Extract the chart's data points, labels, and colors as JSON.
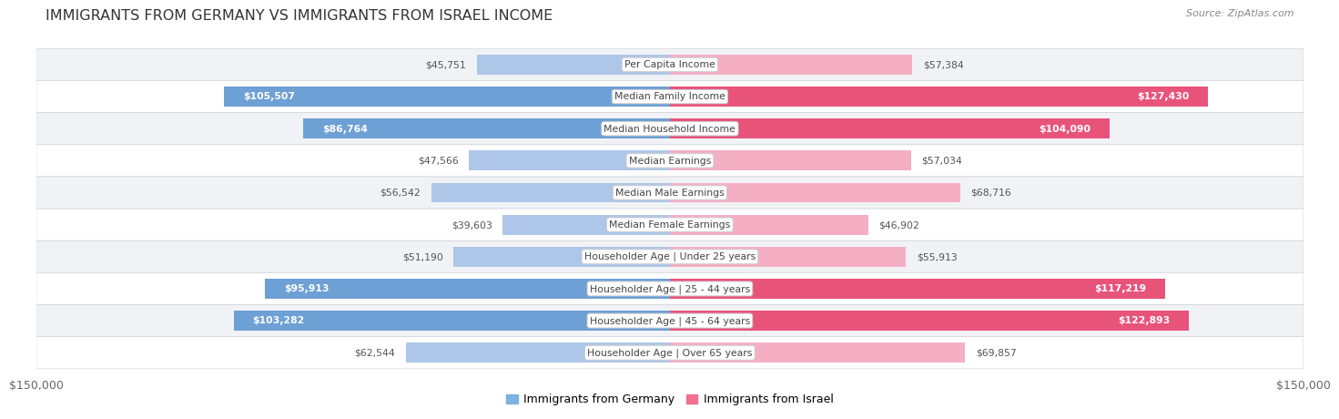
{
  "title": "IMMIGRANTS FROM GERMANY VS IMMIGRANTS FROM ISRAEL INCOME",
  "source": "Source: ZipAtlas.com",
  "categories": [
    "Per Capita Income",
    "Median Family Income",
    "Median Household Income",
    "Median Earnings",
    "Median Male Earnings",
    "Median Female Earnings",
    "Householder Age | Under 25 years",
    "Householder Age | 25 - 44 years",
    "Householder Age | 45 - 64 years",
    "Householder Age | Over 65 years"
  ],
  "germany_values": [
    45751,
    105507,
    86764,
    47566,
    56542,
    39603,
    51190,
    95913,
    103282,
    62544
  ],
  "israel_values": [
    57384,
    127430,
    104090,
    57034,
    68716,
    46902,
    55913,
    117219,
    122893,
    69857
  ],
  "germany_labels": [
    "$45,751",
    "$105,507",
    "$86,764",
    "$47,566",
    "$56,542",
    "$39,603",
    "$51,190",
    "$95,913",
    "$103,282",
    "$62,544"
  ],
  "israel_labels": [
    "$57,384",
    "$127,430",
    "$104,090",
    "$57,034",
    "$68,716",
    "$46,902",
    "$55,913",
    "$117,219",
    "$122,893",
    "$69,857"
  ],
  "germany_color_light": "#aec6e8",
  "germany_color_solid": "#6da0d4",
  "israel_color_light": "#f4afc5",
  "israel_color_solid": "#e8537a",
  "germany_legend_color": "#7ab3e0",
  "israel_legend_color": "#f07090",
  "inside_label_threshold": 75000,
  "max_value": 150000,
  "row_bg_odd": "#f0f2f5",
  "row_bg_even": "#ffffff",
  "row_border": "#d0d4da",
  "center_box_bg": "#ffffff",
  "center_box_border": "#cccccc",
  "title_fontsize": 11.5,
  "bar_label_fontsize": 7.8,
  "cat_label_fontsize": 7.8,
  "axis_label_fontsize": 9,
  "legend_fontsize": 9,
  "axis_label": "$150,000",
  "bar_height": 0.62
}
